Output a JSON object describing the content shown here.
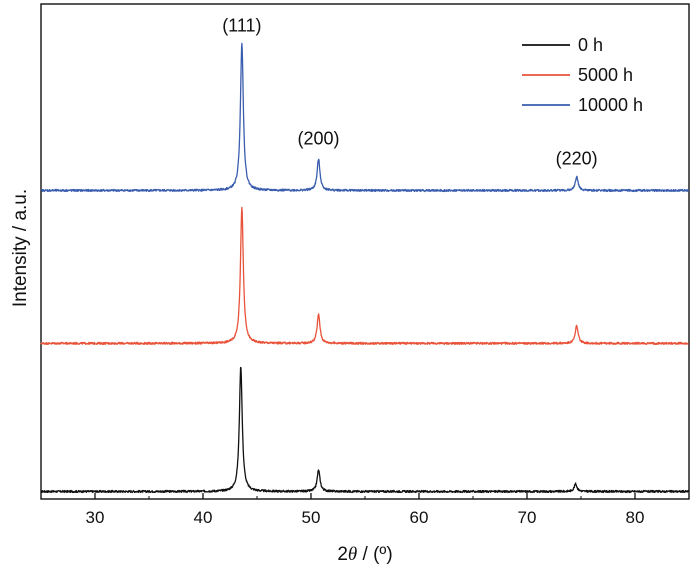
{
  "chart_data": {
    "type": "line",
    "xlabel_prefix": "2",
    "xlabel_symbol": "θ",
    "xlabel_unit": " / (º)",
    "ylabel": "Intensity / a.u.",
    "xlim": [
      25,
      85
    ],
    "x_ticks": [
      30,
      40,
      50,
      60,
      70,
      80
    ],
    "y_ticks_shown": false,
    "legend_position": "top-right",
    "series": [
      {
        "name": "0 h",
        "color": "#111111",
        "offset": 0,
        "baseline": 1.0,
        "peaks": [
          {
            "x": 43.5,
            "height": 100
          },
          {
            "x": 50.7,
            "height": 17
          },
          {
            "x": 74.5,
            "height": 6
          }
        ]
      },
      {
        "name": "5000 h",
        "color": "#e8533a",
        "offset": 118,
        "baseline": 1.2,
        "peaks": [
          {
            "x": 43.6,
            "height": 108
          },
          {
            "x": 50.7,
            "height": 23
          },
          {
            "x": 74.6,
            "height": 14
          }
        ]
      },
      {
        "name": "10000 h",
        "color": "#3a5dae",
        "offset": 240,
        "baseline": 1.2,
        "peaks": [
          {
            "x": 43.6,
            "height": 118
          },
          {
            "x": 50.7,
            "height": 25
          },
          {
            "x": 74.6,
            "height": 11
          }
        ]
      }
    ],
    "peak_labels": [
      {
        "text": "(111)",
        "x": 43.6,
        "y": 368
      },
      {
        "text": "(200)",
        "x": 50.7,
        "y": 278
      },
      {
        "text": "(220)",
        "x": 74.6,
        "y": 262
      }
    ],
    "ylim": [
      -5,
      390
    ]
  }
}
